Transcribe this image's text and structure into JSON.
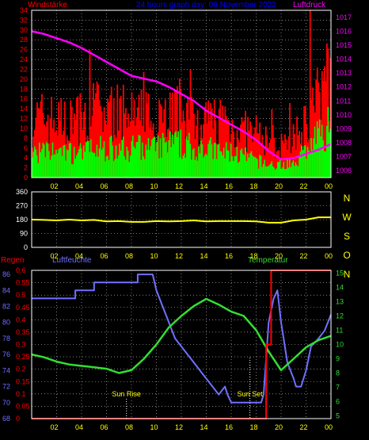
{
  "header": {
    "left_title": "Windstärke",
    "center_title": "24 hours graph day: 06 November 2022",
    "right_title": "Luftdruck"
  },
  "lower_labels": {
    "regen": "Regen",
    "luftfeuchte": "Luftfeuchte",
    "temperatur": "Temperatur",
    "sun_rise": "Sun Rise",
    "sun_set": "Sun Set"
  },
  "colors": {
    "wind_gust": "#ff0000",
    "wind_avg": "#00ff00",
    "pressure": "#ff00ff",
    "direction": "#ffff00",
    "rain": "#ff0000",
    "humidity": "#7070ff",
    "temperature": "#33dd33",
    "axis_text_left": "#ff0000",
    "axis_text_right": "#ff00ff",
    "time_text": "#ffff00",
    "compass_text": "#ffff00",
    "title_text": "#0000ff"
  },
  "chart_data": [
    {
      "type": "bar",
      "name": "wind",
      "x_ticks": [
        "02",
        "04",
        "06",
        "08",
        "10",
        "12",
        "14",
        "16",
        "18",
        "20",
        "22",
        "00"
      ],
      "y_ticks": [
        "0",
        "2",
        "4",
        "6",
        "8",
        "10",
        "12",
        "14",
        "16",
        "18",
        "20",
        "22",
        "24",
        "26",
        "28",
        "30",
        "32",
        "34"
      ],
      "ylim": [
        0,
        34
      ],
      "gust_profile_hourly": [
        12,
        13,
        12,
        12,
        13,
        15,
        14,
        14,
        13,
        13,
        14,
        14,
        15,
        13,
        12,
        13,
        11,
        10,
        9,
        8,
        7,
        8,
        12,
        17
      ],
      "avg_profile_hourly": [
        6,
        6,
        6,
        6,
        6,
        7,
        7,
        7,
        7,
        7,
        7,
        8,
        8,
        7,
        7,
        6,
        6,
        5,
        4,
        3,
        3,
        4,
        7,
        10
      ],
      "peak_gust": 34,
      "y2_ticks": [
        "1006",
        "1007",
        "1008",
        "1009",
        "1010",
        "1011",
        "1012",
        "1013",
        "1014",
        "1015",
        "1016",
        "1017"
      ],
      "y2lim": [
        1005.5,
        1017.5
      ],
      "pressure_x_hours": [
        0,
        1,
        2,
        3,
        4,
        5,
        6,
        7,
        8,
        9,
        10,
        11,
        12,
        13,
        14,
        15,
        16,
        17,
        18,
        19,
        20,
        21,
        22,
        23,
        24
      ],
      "pressure_values": [
        1016.0,
        1015.8,
        1015.5,
        1015.2,
        1014.8,
        1014.3,
        1013.8,
        1013.3,
        1012.8,
        1012.6,
        1012.4,
        1012.0,
        1011.5,
        1011.0,
        1010.3,
        1009.8,
        1009.3,
        1008.8,
        1008.2,
        1007.4,
        1006.8,
        1006.9,
        1007.2,
        1007.5,
        1007.9
      ]
    },
    {
      "type": "line",
      "name": "direction",
      "x_ticks": [
        "02",
        "04",
        "06",
        "08",
        "10",
        "12",
        "14",
        "16",
        "18",
        "20",
        "22",
        "00"
      ],
      "y_ticks": [
        "0",
        "90",
        "180",
        "270",
        "360"
      ],
      "compass": [
        "N",
        "W",
        "S",
        "O",
        "N"
      ],
      "ylim": [
        0,
        360
      ],
      "x_hours": [
        0,
        1,
        2,
        3,
        4,
        5,
        6,
        7,
        8,
        9,
        10,
        11,
        12,
        13,
        14,
        15,
        16,
        17,
        18,
        19,
        20,
        21,
        22,
        23,
        24
      ],
      "values": [
        180,
        178,
        175,
        180,
        175,
        178,
        168,
        170,
        165,
        165,
        170,
        168,
        170,
        175,
        168,
        170,
        170,
        170,
        168,
        160,
        160,
        175,
        180,
        195,
        195
      ]
    },
    {
      "type": "line",
      "name": "weather",
      "x_ticks": [
        "02",
        "04",
        "06",
        "08",
        "10",
        "12",
        "14",
        "16",
        "18",
        "20",
        "22",
        "00"
      ],
      "humidity_ticks": [
        "68",
        "70",
        "72",
        "74",
        "76",
        "78",
        "80",
        "82",
        "84",
        "86"
      ],
      "humidity_lim": [
        68,
        86.5
      ],
      "rain_ticks": [
        "0",
        "0.05",
        "0.1",
        "0.15",
        "0.2",
        "0.25",
        "0.3",
        "0.35",
        "0.4",
        "0.45",
        "0.5",
        "0.55",
        "0.6"
      ],
      "rain_lim": [
        0,
        0.6
      ],
      "temp_ticks": [
        "5",
        "6",
        "7",
        "8",
        "9",
        "10",
        "11",
        "12",
        "13",
        "14",
        "15"
      ],
      "temp_lim": [
        4.8,
        15.2
      ],
      "humidity_x_hours": [
        0,
        3.5,
        3.5,
        5,
        5,
        8.5,
        8.5,
        9.7,
        10,
        10.5,
        11,
        11.5,
        12,
        12.5,
        13,
        13.5,
        14,
        14.5,
        15,
        15.5,
        15.7,
        16,
        16.5,
        18.4,
        18.6,
        19,
        19.4,
        19.7,
        20,
        20.5,
        21,
        21.2,
        21.6,
        22,
        22.4,
        23,
        23.5,
        24
      ],
      "humidity_values": [
        83,
        83,
        84,
        84,
        85,
        85,
        86,
        86,
        84,
        82,
        80,
        78,
        77,
        76,
        75,
        74,
        73,
        72,
        71,
        72,
        71,
        70,
        70,
        70,
        71,
        80,
        83,
        84,
        80,
        75,
        73,
        72,
        72,
        74,
        77,
        78,
        79,
        81
      ],
      "temperature_x_hours": [
        0,
        1,
        2,
        3,
        4,
        5,
        6,
        7,
        8,
        9,
        10,
        11,
        12,
        13,
        14,
        15,
        16,
        17,
        18,
        19,
        20,
        21,
        22,
        23,
        24
      ],
      "temperature_values": [
        9.3,
        9.1,
        8.8,
        8.6,
        8.5,
        8.4,
        8.3,
        8.0,
        8.2,
        9.0,
        10.0,
        11.2,
        12.0,
        12.7,
        13.2,
        12.8,
        12.3,
        12.0,
        11.0,
        9.5,
        8.2,
        9.0,
        9.8,
        10.3,
        10.6
      ],
      "rain_x_hours": [
        0,
        18.8,
        18.8,
        19.2,
        19.2,
        24
      ],
      "rain_values": [
        0,
        0,
        0.3,
        0.3,
        0.6,
        0.6
      ],
      "sun_rise_hour": 7.6,
      "sun_set_hour": 17.5
    }
  ]
}
